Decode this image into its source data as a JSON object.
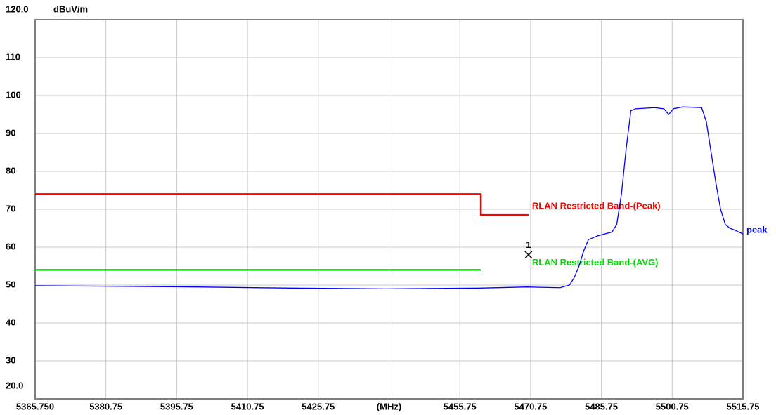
{
  "chart_data": {
    "type": "line",
    "y_unit": "dBuV/m",
    "xlim": [
      5365.75,
      5515.75
    ],
    "ylim": [
      20,
      120
    ],
    "xticks": [
      {
        "value": 5365.75,
        "label": "5365.750"
      },
      5380.75,
      5395.75,
      5410.75,
      5425.75,
      {
        "value": 5440.75,
        "label": "(MHz)"
      },
      5455.75,
      5470.75,
      5485.75,
      5500.75,
      5515.75
    ],
    "yticks": [
      {
        "value": 20,
        "label": "20.0"
      },
      30,
      40,
      50,
      60,
      70,
      80,
      90,
      100,
      110,
      {
        "value": 120,
        "label": "120.0"
      }
    ],
    "grid": true,
    "series": [
      {
        "name": "RLAN Restricted Band-(Peak)",
        "color": "#ff0000",
        "x": [
          5365.75,
          5460.2,
          5460.2,
          5470.3
        ],
        "values": [
          74,
          74,
          68.5,
          68.5
        ]
      },
      {
        "name": "RLAN Restricted Band-(AVG)",
        "color": "#00dd00",
        "x": [
          5365.75,
          5460.2
        ],
        "values": [
          54,
          54
        ]
      },
      {
        "name": "peak",
        "color": "#0000ff",
        "x": [
          5365.75,
          5380,
          5400,
          5420,
          5440,
          5460,
          5470,
          5477,
          5479,
          5480,
          5481,
          5482,
          5483,
          5485,
          5488,
          5489,
          5490,
          5491,
          5492,
          5493,
          5497,
          5499,
          5500,
          5501,
          5503,
          5507,
          5508,
          5509,
          5510,
          5511,
          5512,
          5513,
          5514,
          5515.75
        ],
        "values": [
          49.8,
          49.7,
          49.5,
          49.2,
          49.0,
          49.2,
          49.5,
          49.3,
          50,
          52,
          55,
          59,
          62,
          63,
          64,
          66,
          74,
          86,
          96,
          96.5,
          96.8,
          96.5,
          95,
          96.5,
          97,
          96.8,
          93,
          85,
          77,
          70,
          66,
          65,
          64.5,
          63.5
        ]
      }
    ],
    "marker": {
      "label": "1",
      "x": 5470.3,
      "y": 58
    }
  }
}
